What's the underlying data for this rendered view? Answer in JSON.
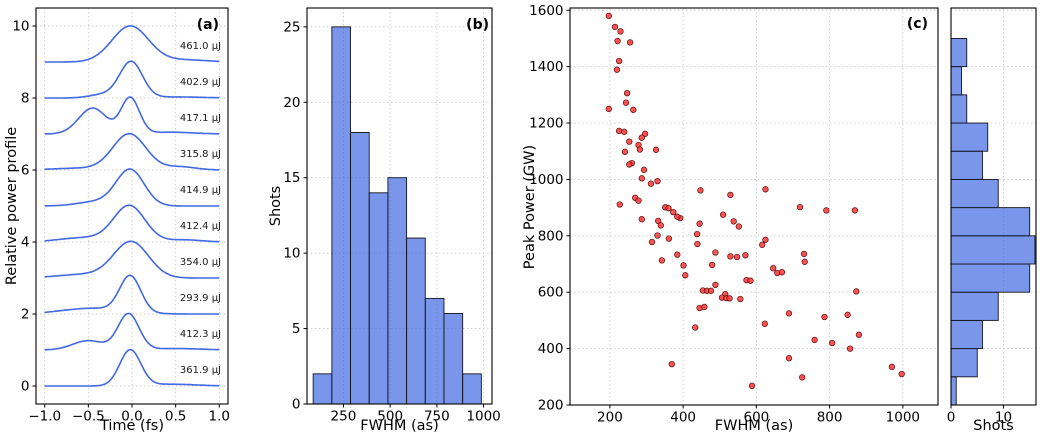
{
  "figure_title": "",
  "style": {
    "line_color": "#4169E1",
    "hist_fill": "#4169E1",
    "hist_fill_opacity": 0.7,
    "hist_edge": "#14141e",
    "scatter_fill": "#F63B3B",
    "scatter_edge": "#5c0d0d",
    "grid_color": "#c9c9c9",
    "spine_color": "#000000",
    "text_color": "#000000"
  },
  "layout": {
    "boxes": {
      "a": [
        36,
        8,
        192,
        396
      ],
      "b": [
        307,
        8,
        185,
        396
      ],
      "c": [
        570,
        8,
        368,
        397
      ],
      "m": [
        951,
        8,
        85,
        397
      ]
    }
  },
  "chart_data": [
    {
      "id": "a",
      "type": "line",
      "panel_label": "(a)",
      "xlabel": "Time (fs)",
      "ylabel": "Relative power profile",
      "xlim": [
        -1.1,
        1.1
      ],
      "ylim": [
        -0.5,
        10.5
      ],
      "xticks": [
        -1,
        -0.5,
        0,
        0.5,
        1
      ],
      "xtick_labels": [
        "−1.0",
        "−0.5",
        "0.0",
        "0.5",
        "1.0"
      ],
      "yticks": [
        0,
        2,
        4,
        6,
        8,
        10
      ],
      "ytick_labels": [
        "0",
        "2",
        "4",
        "6",
        "8",
        "10"
      ],
      "grid": true,
      "trace_label_x": 1.02,
      "trace_label_dy": 0.36,
      "traces": [
        {
          "label": "461.0 μJ",
          "baseline": 9,
          "gaussians": [
            [
              1.0,
              -0.02,
              0.21
            ],
            [
              0.06,
              0.6,
              0.25
            ]
          ]
        },
        {
          "label": "402.9 μJ",
          "baseline": 8,
          "gaussians": [
            [
              1.0,
              -0.01,
              0.13
            ],
            [
              0.1,
              -0.32,
              0.16
            ],
            [
              0.03,
              0.5,
              0.3
            ]
          ]
        },
        {
          "label": "417.1 μJ",
          "baseline": 7,
          "gaussians": [
            [
              1.0,
              -0.02,
              0.105
            ],
            [
              0.72,
              -0.45,
              0.16
            ],
            [
              0.05,
              0.45,
              0.25
            ]
          ]
        },
        {
          "label": "315.8 μJ",
          "baseline": 6,
          "gaussians": [
            [
              1.0,
              -0.03,
              0.19
            ],
            [
              0.09,
              0.55,
              0.18
            ],
            [
              0.05,
              -0.6,
              0.3
            ]
          ]
        },
        {
          "label": "414.9 μJ",
          "baseline": 5,
          "gaussians": [
            [
              1.0,
              -0.02,
              0.16
            ],
            [
              0.12,
              -0.4,
              0.22
            ]
          ]
        },
        {
          "label": "412.4 μJ",
          "baseline": 4,
          "gaussians": [
            [
              1.0,
              -0.03,
              0.18
            ],
            [
              0.12,
              -0.55,
              0.28
            ],
            [
              0.06,
              0.6,
              0.2
            ]
          ]
        },
        {
          "label": "354.0 μJ",
          "baseline": 3,
          "gaussians": [
            [
              1.0,
              -0.01,
              0.2
            ],
            [
              0.1,
              -0.55,
              0.3
            ]
          ]
        },
        {
          "label": "293.9 μJ",
          "baseline": 2,
          "gaussians": [
            [
              1.0,
              -0.02,
              0.12
            ],
            [
              0.16,
              -0.45,
              0.35
            ]
          ]
        },
        {
          "label": "412.3 μJ",
          "baseline": 1,
          "gaussians": [
            [
              1.0,
              -0.04,
              0.12
            ],
            [
              0.26,
              -0.5,
              0.18
            ],
            [
              0.04,
              0.5,
              0.3
            ]
          ]
        },
        {
          "label": "361.9 μJ",
          "baseline": 0,
          "gaussians": [
            [
              1.0,
              -0.02,
              0.12
            ],
            [
              0.05,
              0.45,
              0.28
            ]
          ]
        }
      ]
    },
    {
      "id": "b",
      "type": "bar",
      "panel_label": "(b)",
      "xlabel": "FWHM (as)",
      "ylabel": "Shots",
      "xlim": [
        55,
        1045
      ],
      "ylim": [
        0,
        26.25
      ],
      "xticks": [
        250,
        500,
        750,
        1000
      ],
      "xtick_labels": [
        "250",
        "500",
        "750",
        "1000"
      ],
      "yticks": [
        0,
        5,
        10,
        15,
        20,
        25
      ],
      "ytick_labels": [
        "0",
        "5",
        "10",
        "15",
        "20",
        "25"
      ],
      "grid": true,
      "bin_edges": [
        88,
        188,
        288,
        388,
        488,
        588,
        688,
        788,
        888,
        988
      ],
      "counts": [
        2,
        25,
        18,
        14,
        15,
        11,
        7,
        6,
        2
      ]
    },
    {
      "id": "c",
      "type": "scatter",
      "panel_label": "(c)",
      "xlabel": "FWHM (as)",
      "ylabel": "Peak Power (GW)",
      "xlim": [
        91,
        1096
      ],
      "ylim": [
        200,
        1608
      ],
      "xticks": [
        200,
        400,
        600,
        800,
        1000
      ],
      "xtick_labels": [
        "200",
        "400",
        "600",
        "800",
        "1000"
      ],
      "yticks": [
        200,
        400,
        600,
        800,
        1000,
        1200,
        1400,
        1600
      ],
      "ytick_labels": [
        "200",
        "400",
        "600",
        "800",
        "1000",
        "1200",
        "1400",
        "1600"
      ],
      "grid": true,
      "points": [
        [
          197,
          1580
        ],
        [
          214,
          1541
        ],
        [
          229,
          1525
        ],
        [
          221,
          1491
        ],
        [
          255,
          1486
        ],
        [
          225,
          1420
        ],
        [
          219,
          1389
        ],
        [
          247,
          1306
        ],
        [
          244,
          1272
        ],
        [
          197,
          1250
        ],
        [
          264,
          1247
        ],
        [
          225,
          1172
        ],
        [
          239,
          1169
        ],
        [
          296,
          1162
        ],
        [
          287,
          1148
        ],
        [
          253,
          1134
        ],
        [
          278,
          1122
        ],
        [
          282,
          1106
        ],
        [
          241,
          1098
        ],
        [
          326,
          1105
        ],
        [
          260,
          1058
        ],
        [
          253,
          1053
        ],
        [
          293,
          1034
        ],
        [
          287,
          1004
        ],
        [
          312,
          985
        ],
        [
          330,
          994
        ],
        [
          447,
          961
        ],
        [
          529,
          945
        ],
        [
          625,
          965
        ],
        [
          227,
          911
        ],
        [
          269,
          935
        ],
        [
          278,
          925
        ],
        [
          351,
          901
        ],
        [
          360,
          898
        ],
        [
          373,
          884
        ],
        [
          287,
          859
        ],
        [
          332,
          853
        ],
        [
          339,
          837
        ],
        [
          392,
          863
        ],
        [
          384,
          868
        ],
        [
          509,
          875
        ],
        [
          538,
          851
        ],
        [
          445,
          843
        ],
        [
          330,
          801
        ],
        [
          315,
          778
        ],
        [
          361,
          790
        ],
        [
          438,
          806
        ],
        [
          552,
          833
        ],
        [
          439,
          771
        ],
        [
          488,
          741
        ],
        [
          384,
          733
        ],
        [
          342,
          713
        ],
        [
          529,
          727
        ],
        [
          547,
          725
        ],
        [
          570,
          731
        ],
        [
          401,
          695
        ],
        [
          479,
          697
        ],
        [
          406,
          660
        ],
        [
          573,
          643
        ],
        [
          584,
          641
        ],
        [
          488,
          626
        ],
        [
          454,
          606
        ],
        [
          465,
          605
        ],
        [
          476,
          605
        ],
        [
          515,
          593
        ],
        [
          506,
          581
        ],
        [
          518,
          579
        ],
        [
          527,
          578
        ],
        [
          556,
          576
        ],
        [
          445,
          544
        ],
        [
          458,
          548
        ],
        [
          433,
          475
        ],
        [
          623,
          488
        ],
        [
          369,
          345
        ],
        [
          689,
          525
        ],
        [
          625,
          786
        ],
        [
          616,
          768
        ],
        [
          646,
          685
        ],
        [
          657,
          668
        ],
        [
          670,
          671
        ],
        [
          689,
          366
        ],
        [
          588,
          268
        ],
        [
          719,
          902
        ],
        [
          791,
          890
        ],
        [
          869,
          890
        ],
        [
          730,
          736
        ],
        [
          732,
          708
        ],
        [
          873,
          603
        ],
        [
          786,
          512
        ],
        [
          849,
          520
        ],
        [
          880,
          449
        ],
        [
          759,
          431
        ],
        [
          807,
          420
        ],
        [
          856,
          400
        ],
        [
          970,
          335
        ],
        [
          997,
          310
        ],
        [
          725,
          298
        ]
      ]
    },
    {
      "id": "m",
      "type": "barh",
      "panel_label": "",
      "xlabel": "Shots",
      "ylabel": "",
      "xlim": [
        0,
        16.2
      ],
      "ylim": [
        200,
        1608
      ],
      "xticks": [
        0,
        10
      ],
      "xtick_labels": [
        "0",
        "10"
      ],
      "yticks": [
        200,
        400,
        600,
        800,
        1000,
        1200,
        1400,
        1600
      ],
      "grid": true,
      "bin_edges": [
        200,
        300,
        400,
        500,
        600,
        700,
        800,
        900,
        1000,
        1100,
        1200,
        1300,
        1400,
        1500
      ],
      "counts": [
        1,
        5,
        6,
        9,
        15,
        16,
        15,
        9,
        6,
        7,
        3,
        2,
        3
      ]
    }
  ]
}
